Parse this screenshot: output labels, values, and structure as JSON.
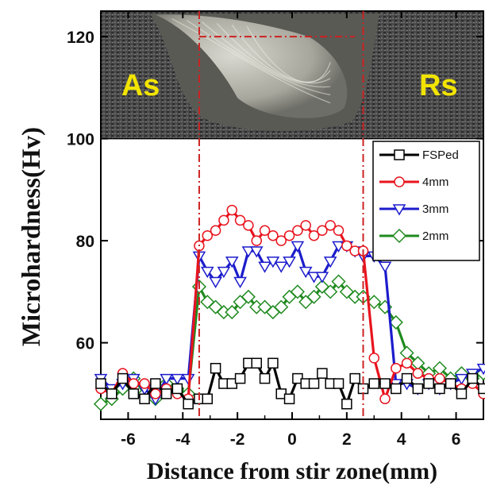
{
  "chart_data": {
    "type": "line",
    "xlabel": "Distance from stir zone(mm)",
    "ylabel": "Microhardness(Hv)",
    "xlim": [
      -7,
      7
    ],
    "ylim": [
      45,
      125
    ],
    "xticks": [
      -6,
      -4,
      -2,
      0,
      2,
      4,
      6
    ],
    "yticks": [
      60,
      80,
      100,
      120
    ],
    "grid": false,
    "legend_position": "top-right",
    "inset": {
      "type": "macrograph",
      "labels": [
        "As",
        "Rs"
      ],
      "label_color": "#f2e400",
      "y_range": [
        100,
        125
      ]
    },
    "boundary_lines_x": [
      -3.4,
      2.6
    ],
    "boundary_line_color": "#cc2222",
    "x": [
      -7.0,
      -6.6,
      -6.2,
      -5.8,
      -5.4,
      -5.0,
      -4.6,
      -4.2,
      -3.8,
      -3.4,
      -3.1,
      -2.8,
      -2.5,
      -2.2,
      -1.9,
      -1.6,
      -1.3,
      -1.0,
      -0.7,
      -0.4,
      -0.1,
      0.2,
      0.5,
      0.8,
      1.1,
      1.4,
      1.7,
      2.0,
      2.3,
      2.6,
      3.0,
      3.4,
      3.8,
      4.2,
      4.6,
      5.0,
      5.4,
      5.8,
      6.2,
      6.6,
      7.0
    ],
    "series": [
      {
        "name": "FSPed",
        "color": "#000000",
        "marker": "square",
        "values": [
          52,
          50,
          53,
          50,
          49,
          52,
          50,
          51,
          48,
          49,
          49,
          55,
          52,
          52,
          53,
          56,
          56,
          53,
          56,
          50,
          49,
          53,
          52,
          52,
          54,
          52,
          52,
          48,
          53,
          51,
          52,
          52,
          51,
          53,
          51,
          52,
          51,
          52,
          50,
          53,
          51
        ]
      },
      {
        "name": "4mm",
        "color": "#e8141e",
        "marker": "circle",
        "values": [
          51,
          50,
          54,
          52,
          52,
          50,
          51,
          50,
          49,
          79,
          81,
          82,
          84,
          86,
          84,
          83,
          80,
          82,
          81,
          80,
          81,
          82,
          83,
          81,
          82,
          83,
          82,
          79,
          78,
          78,
          57,
          49,
          55,
          56,
          54,
          53,
          53,
          52,
          51,
          52,
          50
        ]
      },
      {
        "name": "3mm",
        "color": "#1c1ccc",
        "marker": "triangle-down",
        "values": [
          53,
          51,
          52,
          53,
          51,
          49,
          53,
          53,
          53,
          77,
          74,
          72,
          74,
          76,
          72,
          78,
          78,
          75,
          76,
          75,
          76,
          79,
          74,
          73,
          73,
          76,
          79,
          79,
          78,
          77,
          77,
          75,
          52,
          52,
          51,
          52,
          51,
          52,
          53,
          54,
          55
        ]
      },
      {
        "name": "2mm",
        "color": "#1f8a1f",
        "marker": "diamond",
        "values": [
          48,
          49,
          51,
          53,
          50,
          49,
          52,
          51,
          50,
          71,
          68,
          67,
          66,
          66,
          68,
          69,
          67,
          67,
          66,
          67,
          69,
          70,
          68,
          69,
          71,
          70,
          72,
          70,
          69,
          69,
          68,
          67,
          64,
          58,
          56,
          54,
          55,
          53,
          54,
          53,
          54
        ]
      }
    ]
  }
}
